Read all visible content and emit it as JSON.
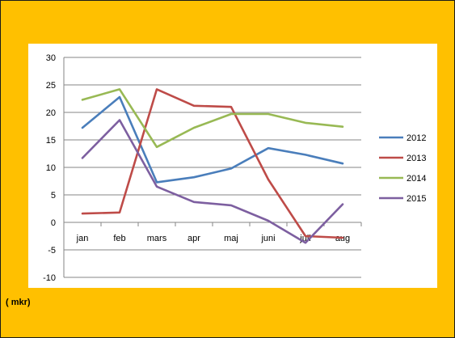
{
  "chart_data": {
    "type": "line",
    "categories": [
      "jan",
      "feb",
      "mars",
      "apr",
      "maj",
      "juni",
      "juli",
      "aug"
    ],
    "series": [
      {
        "name": "2012",
        "color": "#4a7ebb",
        "values": [
          17.2,
          22.8,
          7.3,
          8.2,
          9.8,
          13.5,
          12.3,
          10.7
        ]
      },
      {
        "name": "2013",
        "color": "#be4b48",
        "values": [
          1.6,
          1.8,
          24.2,
          21.2,
          21.0,
          7.8,
          -2.5,
          -2.8
        ]
      },
      {
        "name": "2014",
        "color": "#98b954",
        "values": [
          22.3,
          24.2,
          13.7,
          17.2,
          19.7,
          19.7,
          18.1,
          17.4
        ]
      },
      {
        "name": "2015",
        "color": "#7d5fa0",
        "values": [
          11.7,
          18.6,
          6.5,
          3.7,
          3.1,
          0.3,
          -3.7,
          3.3
        ]
      }
    ],
    "yticks": [
      30,
      25,
      20,
      15,
      10,
      5,
      0,
      -5,
      -10
    ],
    "ylim": [
      -10,
      30
    ],
    "grid": "horizontal",
    "legend_position": "right"
  },
  "unit_note": "( mkr)"
}
